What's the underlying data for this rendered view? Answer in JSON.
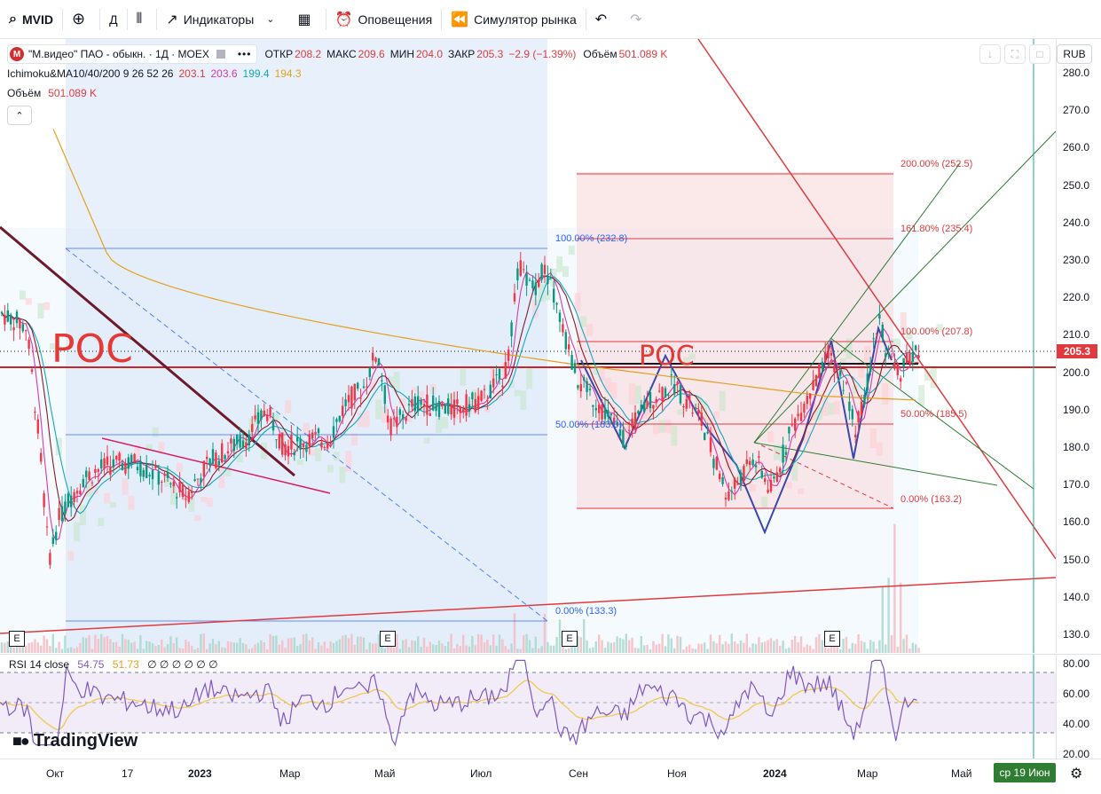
{
  "toolbar": {
    "symbol": "MVID",
    "timeframe": "Д",
    "indicators_label": "Индикаторы",
    "alerts_label": "Оповещения",
    "replay_label": "Симулятор рынка"
  },
  "legend": {
    "logo_letter": "М",
    "title": "\"М.видео\" ПАО - обыкн. · 1Д · MOEX",
    "open_label": "ОТКР",
    "open_value": "208.2",
    "high_label": "МАКС",
    "high_value": "209.6",
    "low_label": "МИН",
    "low_value": "204.0",
    "close_label": "ЗАКР",
    "close_value": "205.3",
    "change_value": "−2.9 (−1.39%)",
    "volume_label": "Объём",
    "volume_value": "501.089 K",
    "indicator_name": "Ichimoku&MA10/40/200 9 26 52 26",
    "ind_v1": "203.1",
    "ind_v2": "203.6",
    "ind_v3": "199.4",
    "ind_v4": "194.3",
    "vol_row_label": "Объём",
    "vol_row_value": "501.089 K"
  },
  "currency": "RUB",
  "price_tag": "205.3",
  "price_axis": [
    "280.0",
    "270.0",
    "260.0",
    "250.0",
    "240.0",
    "230.0",
    "220.0",
    "210.0",
    "200.0",
    "190.0",
    "180.0",
    "170.0",
    "160.0",
    "150.0",
    "140.0",
    "130.0"
  ],
  "rsi_axis": [
    "80.00",
    "60.00",
    "40.00",
    "20.00"
  ],
  "rsi_legend": {
    "name": "RSI 14 close",
    "v1": "54.75",
    "v2": "51.73",
    "rest": "∅ ∅ ∅ ∅ ∅ ∅"
  },
  "time_axis": [
    {
      "label": "Окт",
      "bold": false
    },
    {
      "label": "17",
      "bold": false
    },
    {
      "label": "2023",
      "bold": true
    },
    {
      "label": "Мар",
      "bold": false
    },
    {
      "label": "Май",
      "bold": false
    },
    {
      "label": "Июл",
      "bold": false
    },
    {
      "label": "Сен",
      "bold": false
    },
    {
      "label": "Ноя",
      "bold": false
    },
    {
      "label": "2024",
      "bold": true
    },
    {
      "label": "Мар",
      "bold": false
    },
    {
      "label": "Май",
      "bold": false
    }
  ],
  "date_tag": "ср 19 Июн",
  "fib_left": {
    "top": "100.00% (232.8)",
    "mid": "50.00% (183.0)",
    "bottom": "0.00% (133.3)"
  },
  "fib_right": {
    "l200": "200.00% (252.5)",
    "l1618": "161.80% (235.4)",
    "l100": "100.00% (207.8)",
    "l50": "50.00% (185.5)",
    "l0": "0.00% (163.2)"
  },
  "annotations": {
    "poc_left": "POC",
    "poc_right": "POC"
  },
  "earnings_mark": "E",
  "logo_text": "TradingView",
  "colors": {
    "up": "#089981",
    "down": "#f23645",
    "accent": "#e03a3e",
    "fib_blue": "#2962ff",
    "fib_red": "#f23645"
  }
}
